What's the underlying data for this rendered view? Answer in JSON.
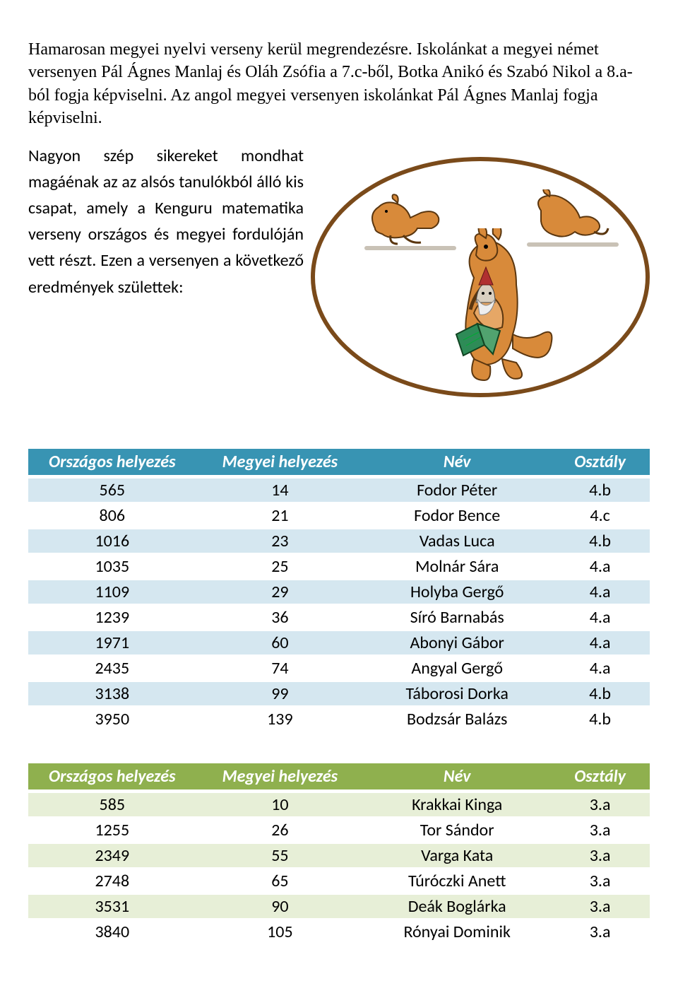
{
  "intro_paragraph": "Hamarosan megyei nyelvi verseny kerül megrendezésre. Iskolánkat a megyei német versenyen Pál Ágnes Manlaj és Oláh Zsófia  a 7.c-ből, Botka Anikó és Szabó Nikol a 8.a-ból fogja képviselni. Az angol megyei versenyen iskolánkat Pál Ágnes Manlaj fogja képviselni.",
  "wrap_paragraph": "Nagyon szép sikereket mondhat magáénak az az alsós tanulókból álló kis csapat, amely a Kenguru matematika verseny országos és megyei fordulóján vett részt. Ezen a versenyen a következő eredmények születtek:",
  "illustration": {
    "border_color": "#7a4a1a",
    "bg_color": "#ffffff",
    "kangaroo_fill": "#d88a3a",
    "kangaroo_stroke": "#5a360f",
    "shadow_color": "#c9c2b6",
    "book_color": "#2e8b57",
    "gnome_hat": "#b03030"
  },
  "tables": [
    {
      "header_bg": "#3894b3",
      "row_alt_bg": "#d5e7f0",
      "row_bg": "#ffffff",
      "text_color": "#000000",
      "columns": [
        "Országos helyezés",
        "Megyei helyezés",
        "Név",
        "Osztály"
      ],
      "col_widths": [
        "27%",
        "27%",
        "30%",
        "16%"
      ],
      "rows": [
        [
          "565",
          "14",
          "Fodor Péter",
          "4.b"
        ],
        [
          "806",
          "21",
          "Fodor Bence",
          "4.c"
        ],
        [
          "1016",
          "23",
          "Vadas Luca",
          "4.b"
        ],
        [
          "1035",
          "25",
          "Molnár Sára",
          "4.a"
        ],
        [
          "1109",
          "29",
          "Holyba Gergő",
          "4.a"
        ],
        [
          "1239",
          "36",
          "Síró Barnabás",
          "4.a"
        ],
        [
          "1971",
          "60",
          "Abonyi Gábor",
          "4.a"
        ],
        [
          "2435",
          "74",
          "Angyal Gergő",
          "4.a"
        ],
        [
          "3138",
          "99",
          "Táborosi Dorka",
          "4.b"
        ],
        [
          "3950",
          "139",
          "Bodzsár Balázs",
          "4.b"
        ]
      ]
    },
    {
      "header_bg": "#8fb04e",
      "row_alt_bg": "#e7efd7",
      "row_bg": "#ffffff",
      "text_color": "#000000",
      "columns": [
        "Országos helyezés",
        "Megyei helyezés",
        "Név",
        "Osztály"
      ],
      "col_widths": [
        "27%",
        "27%",
        "30%",
        "16%"
      ],
      "rows": [
        [
          "585",
          "10",
          "Krakkai Kinga",
          "3.a"
        ],
        [
          "1255",
          "26",
          "Tor Sándor",
          "3.a"
        ],
        [
          "2349",
          "55",
          "Varga Kata",
          "3.a"
        ],
        [
          "2748",
          "65",
          "Túróczki Anett",
          "3.a"
        ],
        [
          "3531",
          "90",
          "Deák Boglárka",
          "3.a"
        ],
        [
          "3840",
          "105",
          "Rónyai Dominik",
          "3.a"
        ]
      ]
    }
  ]
}
